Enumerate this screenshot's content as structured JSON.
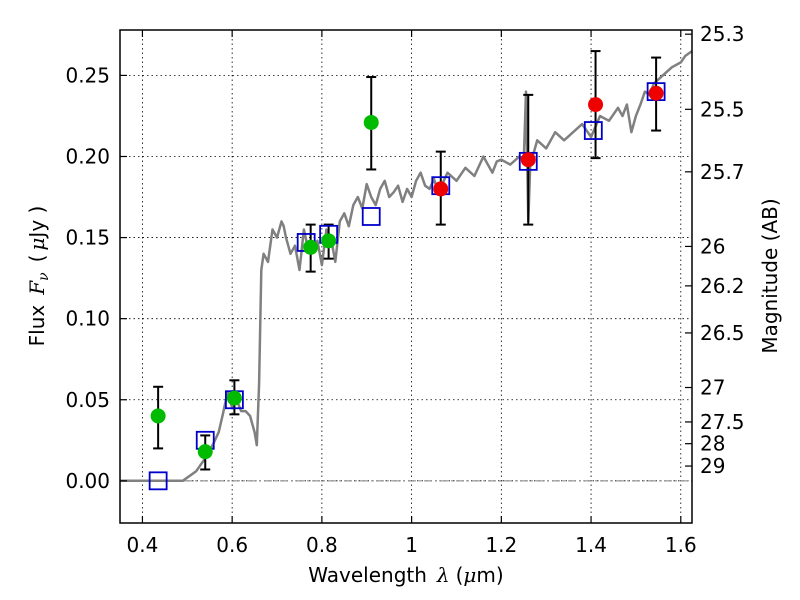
{
  "chart_data": {
    "type": "scatter",
    "xlabel_text": "Wavelength",
    "xlabel_symbol": "λ",
    "xlabel_unit_open": "(",
    "xlabel_unit_mu": "μ",
    "xlabel_unit_rest": "m)",
    "ylabel_text": "Flux",
    "ylabel_symbol": "F",
    "ylabel_sub": "ν",
    "ylabel_unit_open": "(",
    "ylabel_unit_mu": "μ",
    "ylabel_unit_rest": "Jy )",
    "y2label": "Magnitude (AB)",
    "xlim": [
      0.35,
      1.625
    ],
    "ylim": [
      -0.026,
      0.278
    ],
    "x_ticks": [
      0.4,
      0.6,
      0.8,
      1.0,
      1.2,
      1.4,
      1.6
    ],
    "x_tick_labels": [
      "0.4",
      "0.6",
      "0.8",
      "1",
      "1.2",
      "1.4",
      "1.6"
    ],
    "y_ticks": [
      0.0,
      0.05,
      0.1,
      0.15,
      0.2,
      0.25
    ],
    "y_tick_labels": [
      "0.00",
      "0.05",
      "0.10",
      "0.15",
      "0.20",
      "0.25"
    ],
    "y2_ticks": [
      25.3,
      25.5,
      25.7,
      26,
      26.2,
      26.5,
      27,
      27.5,
      28,
      29
    ],
    "y2_tick_labels": [
      "25.3",
      "25.5",
      "25.7",
      "26",
      "26.2",
      "26.5",
      "27",
      "27.5",
      "28",
      "29"
    ],
    "grid": true,
    "colors": {
      "model": "#808080",
      "green": "#00bb00",
      "red": "#ee0000",
      "square": "#0000cc",
      "errorbar": "#000000",
      "zero": "#808080"
    },
    "model_spectrum": {
      "name": "SED model",
      "x": [
        0.35,
        0.45,
        0.49,
        0.52,
        0.545,
        0.56,
        0.57,
        0.58,
        0.59,
        0.6,
        0.61,
        0.62,
        0.63,
        0.64,
        0.645,
        0.65,
        0.655,
        0.66,
        0.665,
        0.67,
        0.68,
        0.69,
        0.7,
        0.71,
        0.715,
        0.72,
        0.73,
        0.74,
        0.75,
        0.76,
        0.77,
        0.78,
        0.79,
        0.8,
        0.81,
        0.82,
        0.83,
        0.84,
        0.85,
        0.86,
        0.87,
        0.88,
        0.89,
        0.9,
        0.91,
        0.92,
        0.93,
        0.94,
        0.95,
        0.96,
        0.97,
        0.98,
        0.99,
        1.0,
        1.01,
        1.02,
        1.03,
        1.04,
        1.05,
        1.06,
        1.08,
        1.1,
        1.12,
        1.14,
        1.16,
        1.18,
        1.19,
        1.2,
        1.22,
        1.24,
        1.25,
        1.255,
        1.26,
        1.265,
        1.27,
        1.28,
        1.3,
        1.32,
        1.34,
        1.36,
        1.38,
        1.4,
        1.42,
        1.44,
        1.46,
        1.47,
        1.48,
        1.49,
        1.5,
        1.51,
        1.52,
        1.53,
        1.54,
        1.56,
        1.58,
        1.6,
        1.61,
        1.625
      ],
      "y": [
        0.0,
        0.0,
        0.0,
        0.006,
        0.016,
        0.024,
        0.03,
        0.042,
        0.055,
        0.045,
        0.05,
        0.043,
        0.043,
        0.04,
        0.035,
        0.03,
        0.022,
        0.06,
        0.13,
        0.14,
        0.135,
        0.155,
        0.15,
        0.16,
        0.157,
        0.15,
        0.14,
        0.145,
        0.13,
        0.155,
        0.142,
        0.145,
        0.148,
        0.133,
        0.155,
        0.15,
        0.135,
        0.16,
        0.165,
        0.157,
        0.17,
        0.175,
        0.168,
        0.183,
        0.175,
        0.17,
        0.18,
        0.185,
        0.175,
        0.178,
        0.182,
        0.172,
        0.18,
        0.175,
        0.185,
        0.19,
        0.182,
        0.18,
        0.186,
        0.178,
        0.19,
        0.185,
        0.193,
        0.188,
        0.2,
        0.19,
        0.197,
        0.198,
        0.195,
        0.2,
        0.198,
        0.24,
        0.16,
        0.2,
        0.2,
        0.21,
        0.205,
        0.215,
        0.21,
        0.215,
        0.22,
        0.212,
        0.225,
        0.222,
        0.23,
        0.225,
        0.232,
        0.215,
        0.225,
        0.232,
        0.24,
        0.238,
        0.245,
        0.25,
        0.255,
        0.258,
        0.262,
        0.265
      ]
    },
    "series": [
      {
        "name": "green points",
        "marker": "circle",
        "x": [
          0.435,
          0.54,
          0.605,
          0.775,
          0.815,
          0.91
        ],
        "values": [
          0.04,
          0.018,
          0.051,
          0.144,
          0.148,
          0.221
        ],
        "err_low": [
          0.02,
          0.007,
          0.041,
          0.129,
          0.137,
          0.192
        ],
        "err_high": [
          0.058,
          0.028,
          0.062,
          0.158,
          0.158,
          0.249
        ]
      },
      {
        "name": "red points",
        "marker": "circle",
        "x": [
          1.065,
          1.26,
          1.41,
          1.545
        ],
        "values": [
          0.18,
          0.198,
          0.232,
          0.239
        ],
        "err_low": [
          0.158,
          0.158,
          0.199,
          0.216
        ],
        "err_high": [
          0.203,
          0.238,
          0.265,
          0.261
        ]
      },
      {
        "name": "model photometry",
        "marker": "square",
        "x": [
          0.435,
          0.54,
          0.605,
          0.765,
          0.815,
          0.91,
          1.065,
          1.26,
          1.405,
          1.545
        ],
        "values": [
          0.0,
          0.025,
          0.05,
          0.147,
          0.152,
          0.163,
          0.182,
          0.197,
          0.216,
          0.24
        ]
      }
    ]
  }
}
